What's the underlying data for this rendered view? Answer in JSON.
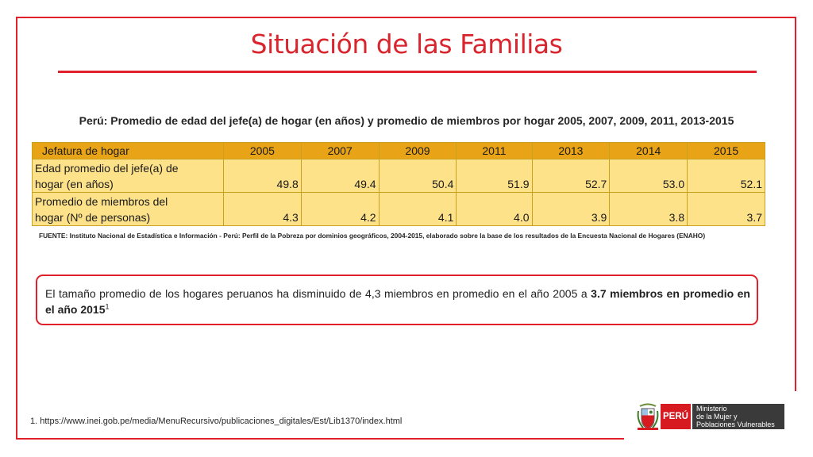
{
  "slide": {
    "title": "Situación de las Familias",
    "subtitle": "Perú: Promedio de edad del jefe(a) de hogar (en años) y promedio de miembros por hogar 2005, 2007, 2009, 2011, 2013-2015",
    "source": "FUENTE: Instituto Nacional de Estadística e Información - Perú: Perfil de la Pobreza por dominios geográficos, 2004-2015, elaborado sobre la base de los resultados de la Encuesta Nacional de Hogares (ENAHO)",
    "callout_text": "El tamaño promedio de los hogares peruanos ha disminuido de 4,3 miembros en promedio en el año 2005 a ",
    "callout_bold": "3.7 miembros en promedio en el año 2015",
    "callout_sup": "1",
    "footnote": "1. https://www.inei.gob.pe/media/MenuRecursivo/publicaciones_digitales/Est/Lib1370/index.html"
  },
  "table": {
    "header": [
      "Jefatura de hogar",
      "2005",
      "2007",
      "2009",
      "2011",
      "2013",
      "2014",
      "2015"
    ],
    "rows": [
      {
        "label_line1": "Edad promedio del jefe(a) de",
        "label_line2": "hogar  (en años)",
        "values": [
          "49.8",
          "49.4",
          "50.4",
          "51.9",
          "52.7",
          "53.0",
          "52.1"
        ]
      },
      {
        "label_line1": "Promedio de miembros del",
        "label_line2": "hogar (Nº de personas)",
        "values": [
          "4.3",
          "4.2",
          "4.1",
          "4.0",
          "3.9",
          "3.8",
          "3.7"
        ]
      }
    ]
  },
  "logo": {
    "country": "PERÚ",
    "ministry_line1": "Ministerio",
    "ministry_line2": "de la Mujer y",
    "ministry_line3": "Poblaciones Vulnerables",
    "red": "#d71920",
    "dark": "#3a3a3a"
  },
  "colors": {
    "accent_red": "#e0202a",
    "table_header": "#e8a317",
    "table_body": "#fde28a"
  }
}
